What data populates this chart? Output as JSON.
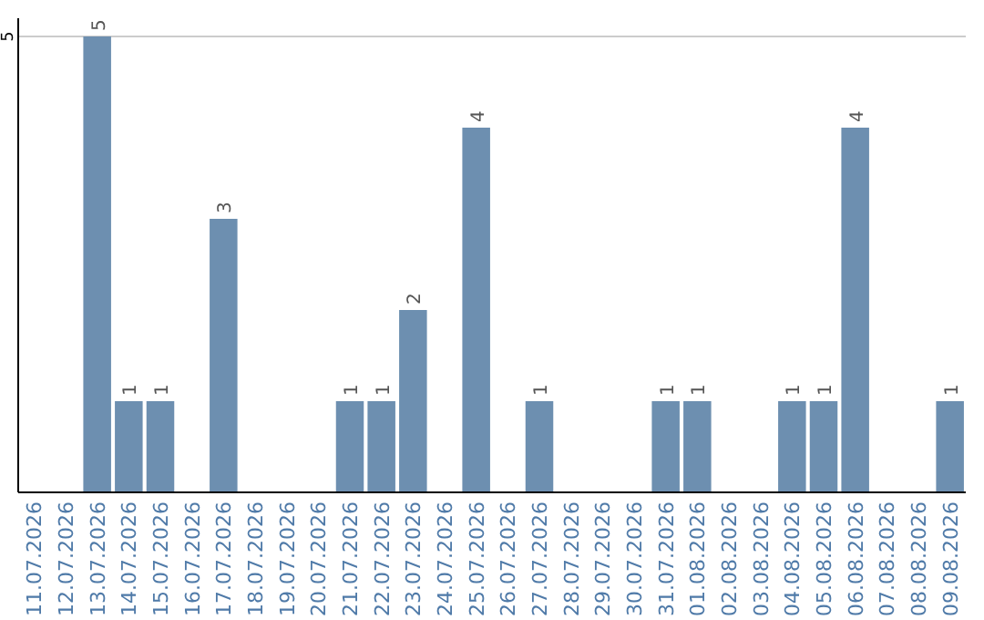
{
  "chart_data": {
    "type": "bar",
    "categories": [
      "11.07.2026",
      "12.07.2026",
      "13.07.2026",
      "14.07.2026",
      "15.07.2026",
      "16.07.2026",
      "17.07.2026",
      "18.07.2026",
      "19.07.2026",
      "20.07.2026",
      "21.07.2026",
      "22.07.2026",
      "23.07.2026",
      "24.07.2026",
      "25.07.2026",
      "26.07.2026",
      "27.07.2026",
      "28.07.2026",
      "29.07.2026",
      "30.07.2026",
      "31.07.2026",
      "01.08.2026",
      "02.08.2026",
      "03.08.2026",
      "04.08.2026",
      "05.08.2026",
      "06.08.2026",
      "07.08.2026",
      "08.08.2026",
      "09.08.2026"
    ],
    "values": [
      0,
      0,
      5,
      1,
      1,
      0,
      3,
      0,
      0,
      0,
      1,
      1,
      2,
      0,
      4,
      0,
      1,
      0,
      0,
      0,
      1,
      1,
      0,
      0,
      1,
      1,
      4,
      0,
      0,
      1
    ],
    "value_labels": [
      null,
      null,
      "5",
      "1",
      "1",
      null,
      "3",
      null,
      null,
      null,
      "1",
      "1",
      "2",
      null,
      "4",
      null,
      "1",
      null,
      null,
      null,
      "1",
      "1",
      null,
      null,
      "1",
      "1",
      "4",
      null,
      null,
      "1"
    ],
    "color": "#6d8fb0",
    "ylim": [
      0,
      5.2
    ],
    "yticks": [
      5
    ],
    "grid": "y"
  }
}
